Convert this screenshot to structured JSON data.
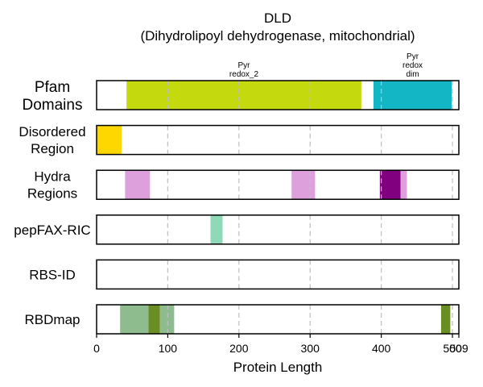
{
  "chart_data": {
    "type": "bar",
    "orientation": "horizontal-interval-tracks",
    "title_lines": [
      "DLD",
      "(Dihydrolipoyl dehydrogenase, mitochondrial)"
    ],
    "xlabel": "Protein Length",
    "xlim": [
      0,
      509
    ],
    "xticks": [
      0,
      100,
      200,
      300,
      400,
      500,
      509
    ],
    "xtick_labels": [
      "0",
      "100",
      "200",
      "300",
      "400",
      "500",
      "509"
    ],
    "gridlines": [
      100,
      200,
      300,
      400,
      500
    ],
    "grid": true,
    "tracks": [
      {
        "name": "pfam",
        "label_lines": [
          "Pfam",
          "Domains"
        ],
        "large_label": true,
        "segments": [
          {
            "start": 42,
            "end": 372,
            "color": "#c5d90f",
            "label_lines": [
              "Pyr",
              "redox_2"
            ]
          },
          {
            "start": 389,
            "end": 499,
            "color": "#12b6c4",
            "label_lines": [
              "Pyr",
              "redox",
              "dim"
            ]
          }
        ]
      },
      {
        "name": "disordered",
        "label_lines": [
          "Disordered",
          "Region"
        ],
        "segments": [
          {
            "start": 0,
            "end": 35,
            "color": "#ffd700"
          }
        ]
      },
      {
        "name": "hydra",
        "label_lines": [
          "Hydra",
          "Regions"
        ],
        "segments": [
          {
            "start": 40,
            "end": 75,
            "color": "#dda0dd"
          },
          {
            "start": 274,
            "end": 307,
            "color": "#dda0dd"
          },
          {
            "start": 398,
            "end": 427,
            "color": "#800080"
          },
          {
            "start": 427,
            "end": 436,
            "color": "#dda0dd"
          }
        ]
      },
      {
        "name": "pepfax",
        "label_lines": [
          "pepFAX-RIC"
        ],
        "segments": [
          {
            "start": 160,
            "end": 177,
            "color": "#8fd8b8"
          }
        ]
      },
      {
        "name": "rbsid",
        "label_lines": [
          "RBS-ID"
        ],
        "segments": []
      },
      {
        "name": "rbdmap",
        "label_lines": [
          "RBDmap"
        ],
        "segments": [
          {
            "start": 33,
            "end": 73,
            "color": "#8fbc8f"
          },
          {
            "start": 73,
            "end": 89,
            "color": "#6b8e23"
          },
          {
            "start": 89,
            "end": 109,
            "color": "#8fbc8f"
          },
          {
            "start": 484,
            "end": 497,
            "color": "#6b8e23"
          }
        ]
      }
    ]
  }
}
